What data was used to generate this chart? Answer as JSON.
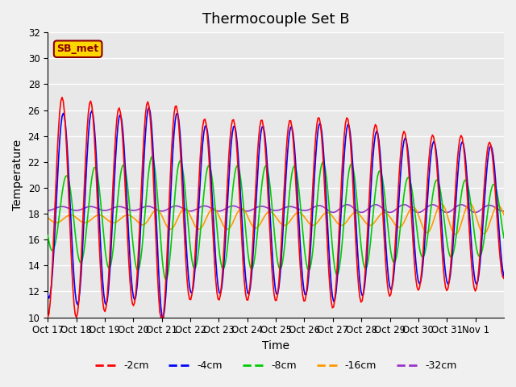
{
  "title": "Thermocouple Set B",
  "xlabel": "Time",
  "ylabel": "Temperature",
  "ylim": [
    10,
    32
  ],
  "y_ticks": [
    10,
    12,
    14,
    16,
    18,
    20,
    22,
    24,
    26,
    28,
    30,
    32
  ],
  "x_labels": [
    "Oct 17",
    "Oct 18",
    "Oct 19",
    "Oct 20",
    "Oct 21",
    "Oct 22",
    "Oct 23",
    "Oct 24",
    "Oct 25",
    "Oct 26",
    "Oct 27",
    "Oct 28",
    "Oct 29",
    "Oct 30",
    "Oct 31",
    "Nov 1"
  ],
  "legend_labels": [
    "-2cm",
    "-4cm",
    "-8cm",
    "-16cm",
    "-32cm"
  ],
  "legend_colors": [
    "#ff0000",
    "#0000ff",
    "#00cc00",
    "#ff9900",
    "#9933cc"
  ],
  "sb_met_label": "SB_met",
  "plot_bg_color": "#e8e8e8",
  "title_fontsize": 13,
  "axis_label_fontsize": 10,
  "tick_fontsize": 8.5
}
